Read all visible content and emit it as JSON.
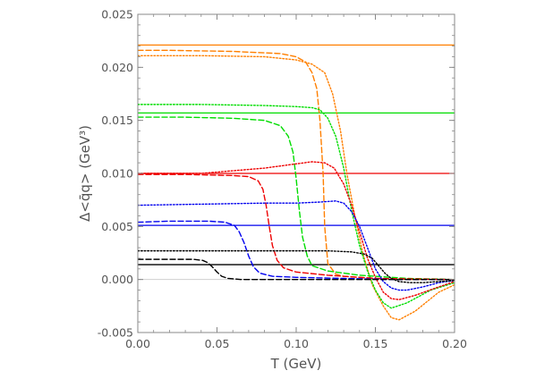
{
  "chart_data": {
    "type": "line",
    "title": "",
    "xlabel": "T (GeV)",
    "ylabel": "Δ<q̄q> (GeV³)",
    "xlim": [
      0.0,
      0.2
    ],
    "ylim": [
      -0.005,
      0.025
    ],
    "x_ticks": [
      "0.00",
      "0.05",
      "0.10",
      "0.15",
      "0.20"
    ],
    "y_ticks": [
      "-0.005",
      "0.000",
      "0.005",
      "0.010",
      "0.015",
      "0.020",
      "0.025"
    ],
    "grid": false,
    "zero_line": true,
    "series": [
      {
        "color": "#ff7f00",
        "style": "solid",
        "x": [
          0.0,
          0.2
        ],
        "y": [
          0.0221,
          0.0221
        ]
      },
      {
        "color": "#00dd00",
        "style": "solid",
        "x": [
          0.0,
          0.2
        ],
        "y": [
          0.0157,
          0.0157
        ]
      },
      {
        "color": "#ee0000",
        "style": "solid",
        "x": [
          0.0,
          0.2
        ],
        "y": [
          0.01,
          0.01
        ]
      },
      {
        "color": "#0000ee",
        "style": "solid",
        "x": [
          0.0,
          0.2
        ],
        "y": [
          0.0051,
          0.0051
        ]
      },
      {
        "color": "#000000",
        "style": "solid",
        "x": [
          0.0,
          0.2
        ],
        "y": [
          0.0014,
          0.0014
        ]
      },
      {
        "color": "#ff7f00",
        "style": "dashed",
        "x": [
          0.0,
          0.02,
          0.06,
          0.09,
          0.1,
          0.106,
          0.11,
          0.113,
          0.115,
          0.117,
          0.118,
          0.12,
          0.125,
          0.13,
          0.14,
          0.15,
          0.17,
          0.2
        ],
        "y": [
          0.0216,
          0.0216,
          0.0215,
          0.0213,
          0.021,
          0.0205,
          0.0195,
          0.018,
          0.015,
          0.01,
          0.005,
          0.0015,
          0.0005,
          0.0003,
          0.0002,
          0.0001,
          0.0,
          0.0
        ]
      },
      {
        "color": "#ff7f00",
        "style": "dotted",
        "x": [
          0.0,
          0.04,
          0.08,
          0.1,
          0.11,
          0.118,
          0.123,
          0.128,
          0.132,
          0.137,
          0.142,
          0.148,
          0.155,
          0.16,
          0.165,
          0.175,
          0.19,
          0.2
        ],
        "y": [
          0.0211,
          0.0211,
          0.021,
          0.0207,
          0.0203,
          0.0195,
          0.0175,
          0.014,
          0.01,
          0.006,
          0.0025,
          -0.0005,
          -0.0025,
          -0.0036,
          -0.0038,
          -0.003,
          -0.0012,
          -0.0005
        ]
      },
      {
        "color": "#00dd00",
        "style": "dashed",
        "x": [
          0.0,
          0.03,
          0.06,
          0.08,
          0.09,
          0.095,
          0.098,
          0.1,
          0.102,
          0.104,
          0.107,
          0.11,
          0.12,
          0.14,
          0.17,
          0.2
        ],
        "y": [
          0.0153,
          0.0153,
          0.0152,
          0.015,
          0.0145,
          0.0135,
          0.012,
          0.0095,
          0.0065,
          0.004,
          0.0022,
          0.0013,
          0.0008,
          0.0004,
          0.0001,
          0.0
        ]
      },
      {
        "color": "#00dd00",
        "style": "dotted",
        "x": [
          0.0,
          0.04,
          0.08,
          0.1,
          0.11,
          0.115,
          0.12,
          0.125,
          0.13,
          0.135,
          0.14,
          0.145,
          0.15,
          0.155,
          0.16,
          0.17,
          0.185,
          0.2
        ],
        "y": [
          0.0165,
          0.0165,
          0.0164,
          0.0163,
          0.0162,
          0.016,
          0.0152,
          0.0135,
          0.0105,
          0.0065,
          0.0032,
          0.0008,
          -0.001,
          -0.0022,
          -0.0027,
          -0.0022,
          -0.001,
          -0.0003
        ]
      },
      {
        "color": "#ee0000",
        "style": "dashed",
        "x": [
          0.0,
          0.03,
          0.06,
          0.07,
          0.076,
          0.079,
          0.081,
          0.083,
          0.085,
          0.088,
          0.092,
          0.1,
          0.12,
          0.15,
          0.2
        ],
        "y": [
          0.0099,
          0.0099,
          0.0098,
          0.0097,
          0.0093,
          0.0085,
          0.007,
          0.005,
          0.0032,
          0.0018,
          0.0011,
          0.0007,
          0.0004,
          0.0001,
          0.0
        ]
      },
      {
        "color": "#ee0000",
        "style": "dotted",
        "x": [
          0.0,
          0.04,
          0.08,
          0.1,
          0.11,
          0.118,
          0.124,
          0.13,
          0.135,
          0.14,
          0.145,
          0.15,
          0.155,
          0.16,
          0.165,
          0.175,
          0.19,
          0.2
        ],
        "y": [
          0.01,
          0.01,
          0.0105,
          0.0109,
          0.0111,
          0.011,
          0.0105,
          0.009,
          0.007,
          0.0045,
          0.002,
          0.0002,
          -0.0012,
          -0.0018,
          -0.0019,
          -0.0015,
          -0.0007,
          -0.0002
        ]
      },
      {
        "color": "#0000ee",
        "style": "dashed",
        "x": [
          0.0,
          0.02,
          0.045,
          0.055,
          0.061,
          0.064,
          0.067,
          0.07,
          0.073,
          0.077,
          0.085,
          0.1,
          0.13,
          0.16,
          0.2
        ],
        "y": [
          0.0054,
          0.0055,
          0.0055,
          0.0054,
          0.0051,
          0.0045,
          0.0035,
          0.0022,
          0.0012,
          0.0006,
          0.0003,
          0.0002,
          0.0001,
          0.0,
          0.0
        ]
      },
      {
        "color": "#0000ee",
        "style": "dotted",
        "x": [
          0.0,
          0.04,
          0.08,
          0.1,
          0.115,
          0.125,
          0.13,
          0.135,
          0.14,
          0.145,
          0.15,
          0.155,
          0.16,
          0.165,
          0.17,
          0.18,
          0.19,
          0.2
        ],
        "y": [
          0.007,
          0.0071,
          0.0072,
          0.0072,
          0.0073,
          0.0074,
          0.0072,
          0.0064,
          0.005,
          0.003,
          0.001,
          -0.0002,
          -0.0008,
          -0.001,
          -0.001,
          -0.0007,
          -0.0003,
          -0.0001
        ]
      },
      {
        "color": "#000000",
        "style": "dashed",
        "x": [
          0.0,
          0.02,
          0.035,
          0.041,
          0.044,
          0.047,
          0.05,
          0.053,
          0.057,
          0.065,
          0.08,
          0.1,
          0.14,
          0.2
        ],
        "y": [
          0.0019,
          0.0019,
          0.0019,
          0.0018,
          0.0016,
          0.0012,
          0.0007,
          0.0003,
          0.0001,
          0.0,
          0.0,
          0.0,
          0.0,
          0.0
        ]
      },
      {
        "color": "#000000",
        "style": "dotted",
        "x": [
          0.0,
          0.05,
          0.1,
          0.12,
          0.135,
          0.143,
          0.148,
          0.152,
          0.156,
          0.16,
          0.165,
          0.172,
          0.18,
          0.19,
          0.2
        ],
        "y": [
          0.0027,
          0.0027,
          0.0027,
          0.0027,
          0.0026,
          0.0024,
          0.002,
          0.0013,
          0.0006,
          0.0001,
          -0.0002,
          -0.0003,
          -0.0003,
          -0.0002,
          -0.0001
        ]
      }
    ]
  }
}
